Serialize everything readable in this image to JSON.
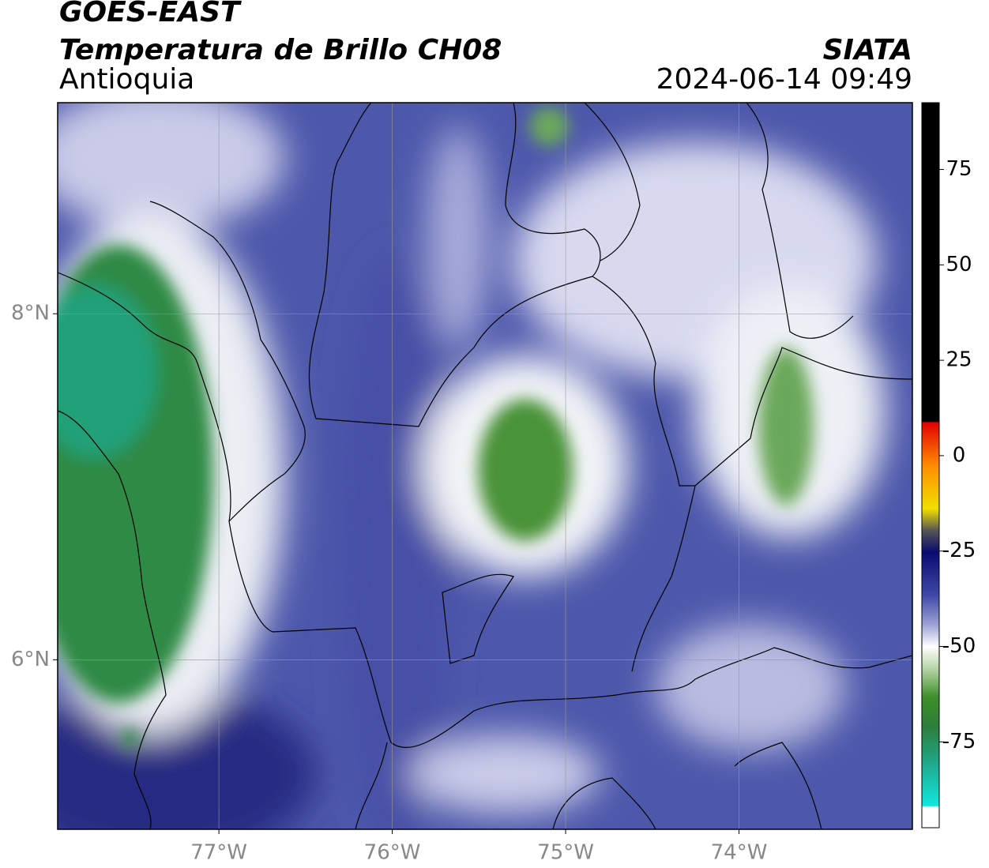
{
  "header": {
    "title": "GOES-EAST",
    "subtitle": "Temperatura de Brillo CH08",
    "region": "Antioquia",
    "source": "SIATA",
    "timestamp": "2024-06-14 09:49"
  },
  "map": {
    "xlim": [
      -77.93,
      -73.0
    ],
    "ylim": [
      5.02,
      9.22
    ],
    "xticks": [
      {
        "value": -77,
        "label": "77°W"
      },
      {
        "value": -76,
        "label": "76°W"
      },
      {
        "value": -75,
        "label": "75°W"
      },
      {
        "value": -74,
        "label": "74°W"
      }
    ],
    "yticks": [
      {
        "value": 8,
        "label": "8°N"
      },
      {
        "value": 6,
        "label": "6°N"
      }
    ],
    "grid": true
  },
  "colorbar": {
    "lim": [
      -97.5,
      92.5
    ],
    "ticks": [
      75,
      50,
      25,
      0,
      -25,
      -50,
      -75
    ]
  }
}
